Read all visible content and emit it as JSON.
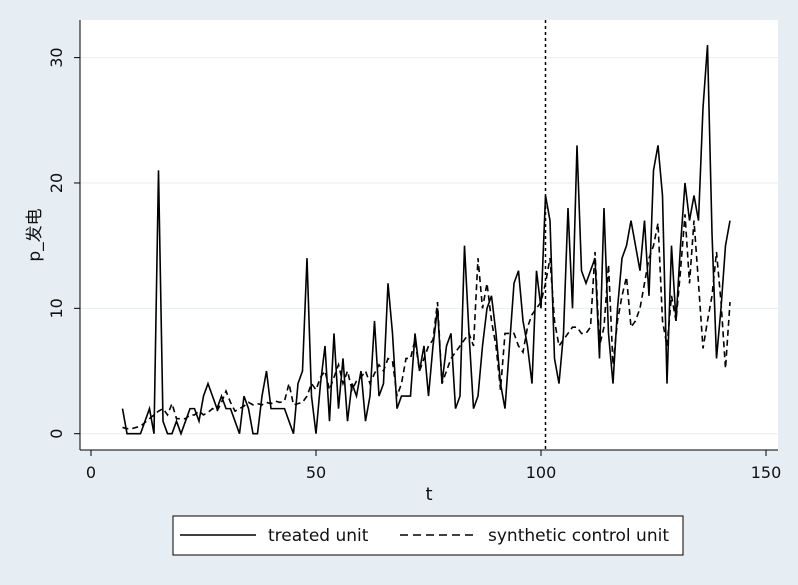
{
  "chart_data": {
    "type": "line",
    "xlabel": "t",
    "ylabel": "p_发电",
    "xlim": [
      0,
      150
    ],
    "ylim": [
      -1.3,
      33
    ],
    "xticks": [
      0,
      50,
      100,
      150
    ],
    "yticks": [
      0,
      10,
      20,
      30
    ],
    "xtick_labels": [
      "0",
      "50",
      "100",
      "150"
    ],
    "ytick_labels": [
      "0",
      "10",
      "20",
      "30"
    ],
    "grid": "horizontal",
    "legend_position": "bottom",
    "vline": {
      "x": 101,
      "style": "dashed"
    },
    "x": [
      7,
      8,
      9,
      10,
      11,
      12,
      13,
      14,
      15,
      16,
      17,
      18,
      19,
      20,
      21,
      22,
      23,
      24,
      25,
      26,
      27,
      28,
      29,
      30,
      31,
      32,
      33,
      34,
      35,
      36,
      37,
      38,
      39,
      40,
      41,
      42,
      43,
      44,
      45,
      46,
      47,
      48,
      49,
      50,
      51,
      52,
      53,
      54,
      55,
      56,
      57,
      58,
      59,
      60,
      61,
      62,
      63,
      64,
      65,
      66,
      67,
      68,
      69,
      70,
      71,
      72,
      73,
      74,
      75,
      76,
      77,
      78,
      79,
      80,
      81,
      82,
      83,
      84,
      85,
      86,
      87,
      88,
      89,
      90,
      91,
      92,
      93,
      94,
      95,
      96,
      97,
      98,
      99,
      100,
      101,
      102,
      103,
      104,
      105,
      106,
      107,
      108,
      109,
      110,
      111,
      112,
      113,
      114,
      115,
      116,
      117,
      118,
      119,
      120,
      121,
      122,
      123,
      124,
      125,
      126,
      127,
      128,
      129,
      130,
      131,
      132,
      133,
      134,
      135,
      136,
      137,
      138,
      139,
      140,
      141,
      142
    ],
    "series": [
      {
        "name": "treated unit",
        "style": "solid",
        "values": [
          2,
          0,
          0,
          0,
          0,
          1,
          2,
          0,
          21,
          1,
          0,
          0,
          1,
          0,
          1,
          2,
          2,
          1,
          3,
          4,
          3,
          2,
          3,
          2,
          2,
          1,
          0,
          3,
          2,
          0,
          0,
          3,
          5,
          2,
          2,
          2,
          2,
          1,
          0,
          4,
          5,
          14,
          3,
          0,
          4,
          7,
          1,
          8,
          2,
          6,
          1,
          4,
          3,
          5,
          1,
          3,
          9,
          3,
          4,
          12,
          8,
          2,
          3,
          3,
          3,
          8,
          5,
          7,
          3,
          7,
          10,
          4,
          7,
          8,
          2,
          3,
          15,
          8,
          2,
          3,
          7,
          10,
          11,
          8,
          4,
          2,
          7,
          12,
          13,
          9,
          7,
          4,
          13,
          10,
          19,
          17,
          6,
          4,
          8,
          18,
          10,
          23,
          13,
          12,
          13,
          14,
          6,
          18,
          8,
          4,
          10,
          14,
          15,
          17,
          15,
          13,
          17,
          11,
          21,
          23,
          19,
          4,
          15,
          9,
          15,
          20,
          17,
          19,
          17,
          26,
          31,
          16,
          6,
          10,
          15,
          17
        ]
      },
      {
        "name": "synthetic control unit",
        "style": "dashed",
        "values": [
          0.5,
          0.4,
          0.4,
          0.5,
          0.6,
          0.9,
          1.2,
          1.5,
          1.8,
          2.0,
          1.5,
          2.4,
          1.2,
          1.2,
          1.2,
          1.5,
          1.5,
          1.8,
          1.5,
          1.7,
          2.0,
          1.8,
          2.5,
          3.4,
          2.5,
          1.8,
          2.0,
          2.2,
          2.5,
          2.3,
          2.4,
          2.3,
          2.5,
          2.4,
          2.6,
          2.5,
          2.6,
          4.0,
          2.3,
          2.4,
          2.5,
          3.0,
          4.0,
          3.5,
          4.5,
          5.0,
          3.5,
          4.5,
          5.5,
          4.0,
          5.0,
          3.5,
          4.2,
          4.5,
          5.0,
          4.0,
          4.8,
          5.5,
          5.0,
          6.0,
          5.8,
          3.0,
          4.0,
          6.0,
          6.0,
          7.5,
          5.0,
          6.0,
          7.0,
          7.5,
          10.5,
          4.0,
          5.0,
          6.0,
          6.5,
          7.0,
          7.5,
          8.0,
          7.0,
          14.0,
          10.0,
          12.0,
          9.0,
          7.0,
          3.5,
          8.0,
          8.0,
          8.0,
          7.0,
          6.5,
          8.5,
          9.5,
          10.0,
          10.5,
          12.0,
          14.0,
          9.0,
          7.0,
          7.5,
          8.0,
          8.5,
          8.5,
          8.0,
          8.0,
          8.5,
          14.5,
          7.0,
          8.5,
          13.5,
          5.5,
          9.0,
          11.0,
          12.5,
          8.5,
          9.0,
          10.0,
          12.0,
          14.0,
          15.0,
          16.8,
          9.0,
          7.0,
          11.0,
          9.0,
          13.0,
          17.5,
          12.0,
          17.0,
          12.0,
          6.8,
          9.0,
          11.0,
          14.5,
          10.5,
          5.2,
          10.5
        ]
      }
    ]
  }
}
